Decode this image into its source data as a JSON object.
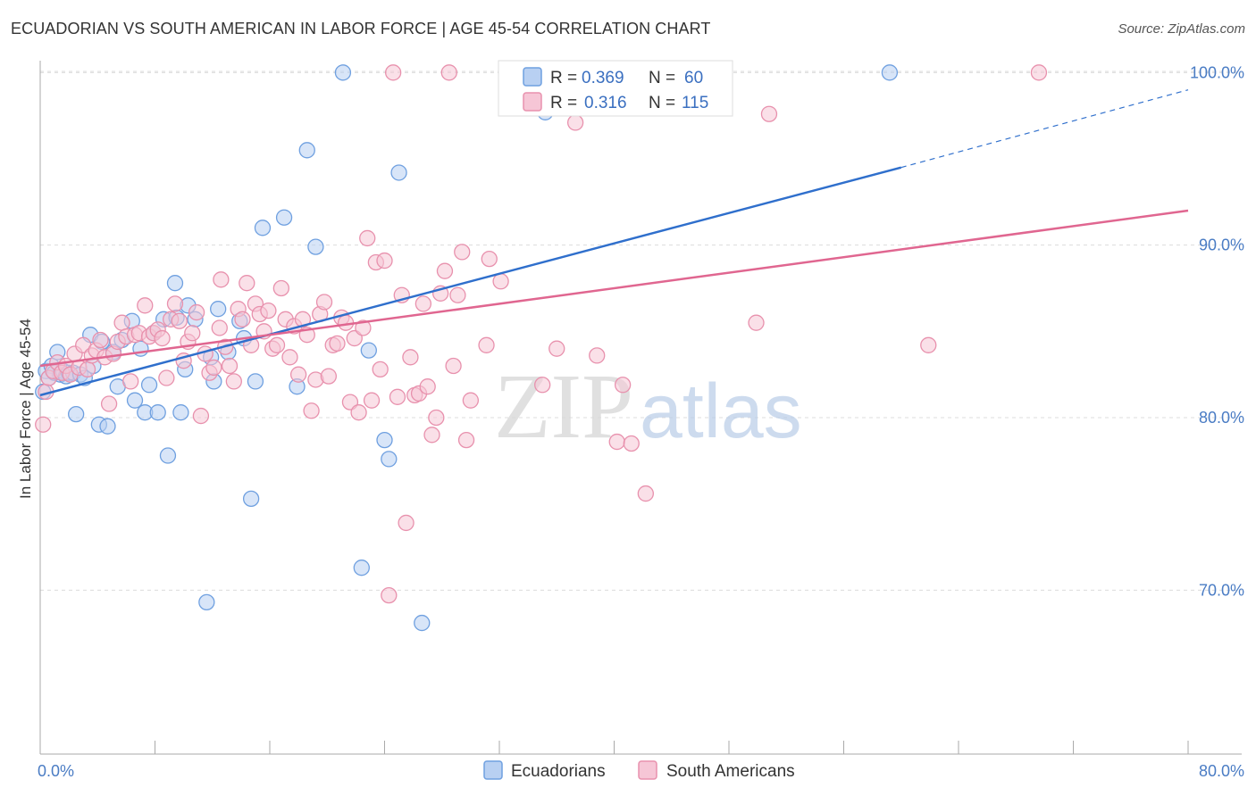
{
  "header": {
    "title": "ECUADORIAN VS SOUTH AMERICAN IN LABOR FORCE | AGE 45-54 CORRELATION CHART",
    "source": "Source: ZipAtlas.com"
  },
  "watermark": {
    "zip": "ZIP",
    "atlas": "atlas"
  },
  "colors": {
    "ecuadorians": "#6fa0e0",
    "ecuadorians_fill": "#b8d0f2",
    "ecuadorians_line": "#2f6fcc",
    "south_americans": "#e891ad",
    "south_americans_fill": "#f6c6d6",
    "south_americans_line": "#e06690",
    "tick_text": "#4a7cc4",
    "grid": "#dcdcdc"
  },
  "legend": {
    "rows": [
      {
        "r_label": "R =",
        "r_value": "0.369",
        "n_label": "N =",
        "n_value": "60"
      },
      {
        "r_label": "R =",
        "r_value": "0.316",
        "n_label": "N =",
        "n_value": "115"
      }
    ]
  },
  "bottom_legend": {
    "items": [
      {
        "label": "Ecuadorians"
      },
      {
        "label": "South Americans"
      }
    ]
  },
  "chart_data": {
    "type": "scatter",
    "title": "ECUADORIAN VS SOUTH AMERICAN IN LABOR FORCE | AGE 45-54 CORRELATION CHART",
    "xlabel": "",
    "ylabel": "In Labor Force | Age 45-54",
    "xlim": [
      0,
      80
    ],
    "ylim": [
      60.5,
      101
    ],
    "x_tick_labels": [
      "0.0%",
      "80.0%"
    ],
    "y_ticks": [
      70,
      80,
      90,
      100
    ],
    "y_tick_labels": [
      "70.0%",
      "80.0%",
      "90.0%",
      "100.0%"
    ],
    "grid": true,
    "legend_position": "top-center",
    "series": [
      {
        "name": "Ecuadorians",
        "R": 0.369,
        "N": 60,
        "trend": {
          "x": [
            0,
            60
          ],
          "y": [
            81.3,
            94.5
          ],
          "extension_x": [
            60,
            80
          ],
          "extension_y": [
            94.5,
            99.0
          ]
        },
        "points": [
          [
            0.4,
            82.7
          ],
          [
            0.6,
            82.3
          ],
          [
            0.8,
            83.0
          ],
          [
            1.0,
            82.6
          ],
          [
            1.2,
            83.8
          ],
          [
            1.4,
            82.5
          ],
          [
            1.6,
            82.7
          ],
          [
            1.8,
            82.4
          ],
          [
            2.0,
            82.6
          ],
          [
            2.3,
            82.6
          ],
          [
            2.5,
            80.2
          ],
          [
            2.8,
            82.5
          ],
          [
            3.1,
            82.3
          ],
          [
            3.5,
            84.8
          ],
          [
            3.7,
            83.0
          ],
          [
            4.1,
            79.6
          ],
          [
            4.3,
            84.4
          ],
          [
            4.7,
            79.5
          ],
          [
            5.1,
            83.8
          ],
          [
            5.4,
            81.8
          ],
          [
            5.7,
            84.5
          ],
          [
            6.4,
            85.6
          ],
          [
            6.6,
            81.0
          ],
          [
            7.0,
            84.0
          ],
          [
            7.3,
            80.3
          ],
          [
            7.6,
            81.9
          ],
          [
            7.9,
            84.9
          ],
          [
            8.2,
            80.3
          ],
          [
            8.6,
            85.7
          ],
          [
            8.9,
            77.8
          ],
          [
            9.5,
            85.8
          ],
          [
            9.4,
            87.8
          ],
          [
            9.8,
            80.3
          ],
          [
            10.1,
            82.8
          ],
          [
            10.3,
            86.5
          ],
          [
            10.8,
            85.7
          ],
          [
            11.6,
            69.3
          ],
          [
            11.9,
            83.5
          ],
          [
            12.1,
            82.1
          ],
          [
            12.4,
            86.3
          ],
          [
            13.1,
            83.8
          ],
          [
            13.9,
            85.6
          ],
          [
            14.2,
            84.6
          ],
          [
            14.7,
            75.3
          ],
          [
            15.0,
            82.1
          ],
          [
            15.5,
            91.0
          ],
          [
            17.0,
            91.6
          ],
          [
            17.9,
            81.8
          ],
          [
            18.6,
            95.5
          ],
          [
            19.2,
            89.9
          ],
          [
            21.1,
            100.0
          ],
          [
            22.4,
            71.3
          ],
          [
            22.9,
            83.9
          ],
          [
            24.0,
            78.7
          ],
          [
            24.3,
            77.6
          ],
          [
            25.0,
            94.2
          ],
          [
            26.6,
            68.1
          ],
          [
            35.2,
            97.7
          ],
          [
            59.2,
            100.0
          ],
          [
            0.2,
            81.5
          ]
        ]
      },
      {
        "name": "South Americans",
        "R": 0.316,
        "N": 115,
        "trend": {
          "x": [
            0,
            80
          ],
          "y": [
            83.0,
            92.0
          ]
        },
        "points": [
          [
            0.2,
            79.6
          ],
          [
            0.4,
            81.5
          ],
          [
            0.6,
            82.3
          ],
          [
            0.9,
            82.7
          ],
          [
            1.2,
            83.2
          ],
          [
            1.5,
            82.6
          ],
          [
            1.8,
            83.0
          ],
          [
            2.1,
            82.5
          ],
          [
            2.4,
            83.7
          ],
          [
            2.7,
            82.9
          ],
          [
            3.0,
            84.2
          ],
          [
            3.3,
            82.8
          ],
          [
            3.6,
            83.6
          ],
          [
            3.9,
            83.9
          ],
          [
            4.2,
            84.5
          ],
          [
            4.5,
            83.5
          ],
          [
            4.8,
            80.8
          ],
          [
            5.1,
            83.7
          ],
          [
            5.4,
            84.4
          ],
          [
            5.7,
            85.5
          ],
          [
            6.0,
            84.7
          ],
          [
            6.3,
            82.1
          ],
          [
            6.6,
            84.8
          ],
          [
            6.9,
            84.9
          ],
          [
            7.3,
            86.5
          ],
          [
            7.6,
            84.7
          ],
          [
            7.9,
            84.9
          ],
          [
            8.2,
            85.1
          ],
          [
            8.5,
            84.6
          ],
          [
            8.8,
            82.3
          ],
          [
            9.1,
            85.7
          ],
          [
            9.4,
            86.6
          ],
          [
            9.7,
            85.6
          ],
          [
            10.0,
            83.3
          ],
          [
            10.3,
            84.4
          ],
          [
            10.6,
            84.9
          ],
          [
            10.9,
            86.1
          ],
          [
            11.2,
            80.1
          ],
          [
            11.5,
            83.7
          ],
          [
            11.8,
            82.6
          ],
          [
            12.1,
            82.9
          ],
          [
            12.5,
            85.2
          ],
          [
            12.6,
            88.0
          ],
          [
            12.9,
            84.1
          ],
          [
            13.2,
            83.0
          ],
          [
            13.5,
            82.1
          ],
          [
            13.8,
            86.3
          ],
          [
            14.1,
            85.7
          ],
          [
            14.4,
            87.8
          ],
          [
            14.7,
            84.2
          ],
          [
            15.0,
            86.6
          ],
          [
            15.3,
            86.0
          ],
          [
            15.6,
            85.0
          ],
          [
            15.9,
            86.2
          ],
          [
            16.2,
            84.0
          ],
          [
            16.5,
            84.2
          ],
          [
            16.8,
            87.5
          ],
          [
            17.1,
            85.7
          ],
          [
            17.4,
            83.5
          ],
          [
            17.7,
            85.3
          ],
          [
            18.0,
            82.5
          ],
          [
            18.3,
            85.7
          ],
          [
            18.6,
            84.8
          ],
          [
            18.9,
            80.4
          ],
          [
            19.2,
            82.2
          ],
          [
            19.5,
            86.0
          ],
          [
            19.8,
            86.7
          ],
          [
            20.1,
            82.4
          ],
          [
            20.4,
            84.2
          ],
          [
            20.7,
            84.3
          ],
          [
            21.0,
            85.8
          ],
          [
            21.3,
            85.5
          ],
          [
            21.6,
            80.9
          ],
          [
            21.9,
            84.6
          ],
          [
            22.2,
            80.3
          ],
          [
            22.5,
            85.2
          ],
          [
            22.8,
            90.4
          ],
          [
            23.1,
            81.0
          ],
          [
            23.4,
            89.0
          ],
          [
            23.7,
            82.8
          ],
          [
            24.0,
            89.1
          ],
          [
            24.3,
            69.7
          ],
          [
            24.6,
            100.0
          ],
          [
            24.9,
            81.2
          ],
          [
            25.2,
            87.1
          ],
          [
            25.5,
            73.9
          ],
          [
            25.8,
            83.5
          ],
          [
            26.1,
            81.3
          ],
          [
            26.4,
            81.4
          ],
          [
            26.7,
            86.6
          ],
          [
            27.0,
            81.8
          ],
          [
            27.3,
            79.0
          ],
          [
            27.6,
            80.0
          ],
          [
            27.9,
            87.2
          ],
          [
            28.2,
            88.5
          ],
          [
            28.5,
            100.0
          ],
          [
            28.8,
            83.0
          ],
          [
            29.1,
            87.1
          ],
          [
            29.4,
            89.6
          ],
          [
            29.7,
            78.7
          ],
          [
            30.0,
            81.0
          ],
          [
            31.1,
            84.2
          ],
          [
            31.3,
            89.2
          ],
          [
            32.1,
            87.9
          ],
          [
            32.6,
            100.0
          ],
          [
            35.0,
            81.9
          ],
          [
            36.0,
            84.0
          ],
          [
            37.3,
            97.1
          ],
          [
            38.8,
            83.6
          ],
          [
            40.2,
            78.6
          ],
          [
            40.6,
            81.9
          ],
          [
            42.2,
            75.6
          ],
          [
            49.9,
            85.5
          ],
          [
            50.8,
            97.6
          ],
          [
            61.9,
            84.2
          ],
          [
            69.6,
            100.0
          ],
          [
            41.2,
            78.5
          ]
        ]
      }
    ]
  }
}
